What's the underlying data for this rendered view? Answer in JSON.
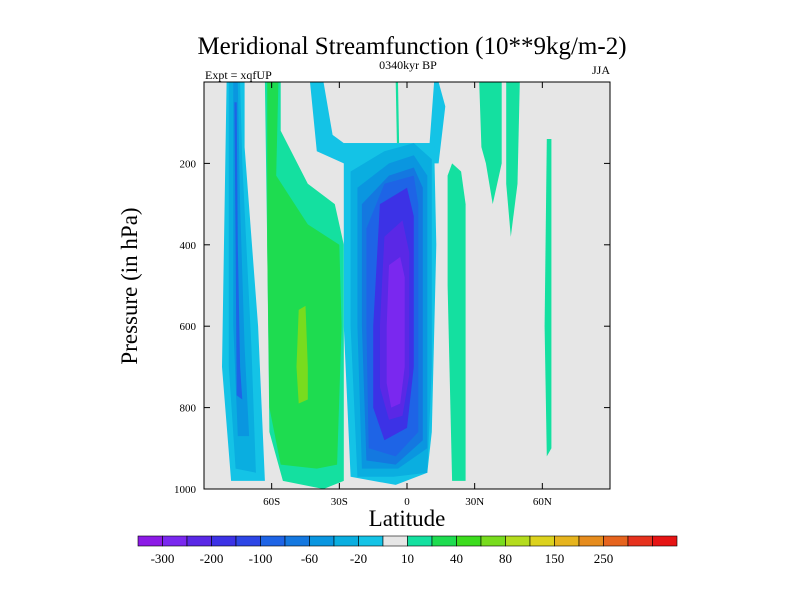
{
  "chart_data": {
    "type": "heatmap",
    "title": "Meridional Streamfunction (10**9kg/m-2)",
    "subtitle_left": "Expt = xqfUP",
    "subtitle_center": "0340kyr BP",
    "subtitle_right": "JJA",
    "xlabel": "Latitude",
    "ylabel": "Pressure (in hPa)",
    "xlim": [
      -90,
      90
    ],
    "ylim": [
      1000,
      0
    ],
    "x_ticks": [
      {
        "value": -60,
        "label": "60S"
      },
      {
        "value": -30,
        "label": "30S"
      },
      {
        "value": 0,
        "label": "0"
      },
      {
        "value": 30,
        "label": "30N"
      },
      {
        "value": 60,
        "label": "60N"
      }
    ],
    "y_ticks": [
      {
        "value": 200,
        "label": "200"
      },
      {
        "value": 400,
        "label": "400"
      },
      {
        "value": 600,
        "label": "600"
      },
      {
        "value": 800,
        "label": "800"
      },
      {
        "value": 1000,
        "label": "1000"
      }
    ],
    "background_color": "#e6e6e6",
    "levels": [
      -400,
      -300,
      -250,
      -200,
      -150,
      -100,
      -80,
      -60,
      -40,
      -20,
      -10,
      10,
      20,
      40,
      60,
      80,
      100,
      150,
      200,
      250,
      300
    ],
    "colorbar_colors": [
      "#8c1ae6",
      "#7a28ef",
      "#5a28e6",
      "#3c32e6",
      "#2d46e6",
      "#1e64e6",
      "#1478e0",
      "#0a96e0",
      "#0aaee0",
      "#14c3e6",
      "#e6e6e6",
      "#14e0a0",
      "#1edc50",
      "#3cdc1e",
      "#78dc1e",
      "#b4dc1e",
      "#dcd21e",
      "#e6b41e",
      "#e68c1e",
      "#e6641e",
      "#e6321e",
      "#e61414"
    ],
    "colorbar_labels": [
      {
        "after_box": 1,
        "label": "-300"
      },
      {
        "after_box": 3,
        "label": "-200"
      },
      {
        "after_box": 5,
        "label": "-100"
      },
      {
        "after_box": 7,
        "label": "-60"
      },
      {
        "after_box": 9,
        "label": "-20"
      },
      {
        "after_box": 11,
        "label": "10"
      },
      {
        "after_box": 13,
        "label": "40"
      },
      {
        "after_box": 15,
        "label": "80"
      },
      {
        "after_box": 17,
        "label": "150"
      },
      {
        "after_box": 19,
        "label": "250"
      }
    ],
    "regions": [
      {
        "name": "sh-polar-cell-outer",
        "value": -20,
        "color": "#14c3e6",
        "lat": [
          [
            -80,
            0
          ],
          [
            -72,
            0
          ],
          [
            -72,
            160
          ],
          [
            -66,
            600
          ],
          [
            -63,
            980
          ],
          [
            -78,
            980
          ],
          [
            -82,
            700
          ]
        ]
      },
      {
        "name": "sh-polar-cell-mid",
        "value": -40,
        "color": "#0aaee0",
        "lat": [
          [
            -79,
            0
          ],
          [
            -74,
            0
          ],
          [
            -73,
            200
          ],
          [
            -69,
            650
          ],
          [
            -67,
            960
          ],
          [
            -76,
            950
          ],
          [
            -79,
            700
          ]
        ]
      },
      {
        "name": "sh-polar-cell-core",
        "value": -60,
        "color": "#0a96e0",
        "lat": [
          [
            -77,
            0
          ],
          [
            -75,
            0
          ],
          [
            -74,
            300
          ],
          [
            -72,
            650
          ],
          [
            -70,
            870
          ],
          [
            -75,
            870
          ],
          [
            -77,
            600
          ]
        ]
      },
      {
        "name": "sh-polar-cell-inner",
        "value": -80,
        "color": "#1e64e6",
        "lat": [
          [
            -76.5,
            50
          ],
          [
            -75.5,
            50
          ],
          [
            -75,
            400
          ],
          [
            -74,
            700
          ],
          [
            -73,
            780
          ],
          [
            -75.5,
            770
          ],
          [
            -76,
            400
          ]
        ]
      },
      {
        "name": "sh-ferrel-cell-outer",
        "value": 20,
        "color": "#14e0a0",
        "lat": [
          [
            -63,
            0
          ],
          [
            -56,
            0
          ],
          [
            -56,
            120
          ],
          [
            -44,
            250
          ],
          [
            -32,
            300
          ],
          [
            -28,
            400
          ],
          [
            -28,
            980
          ],
          [
            -37,
            1000
          ],
          [
            -55,
            980
          ],
          [
            -61,
            860
          ],
          [
            -62,
            400
          ]
        ]
      },
      {
        "name": "sh-ferrel-cell-core",
        "value": 40,
        "color": "#1edc50",
        "lat": [
          [
            -62,
            0
          ],
          [
            -57,
            0
          ],
          [
            -58,
            230
          ],
          [
            -44,
            350
          ],
          [
            -30,
            400
          ],
          [
            -29,
            600
          ],
          [
            -31,
            940
          ],
          [
            -40,
            950
          ],
          [
            -56,
            940
          ],
          [
            -61,
            800
          ],
          [
            -62,
            400
          ]
        ]
      },
      {
        "name": "sh-ferrel-cell-peak",
        "value": 60,
        "color": "#78dc1e",
        "lat": [
          [
            -48,
            560
          ],
          [
            -45,
            550
          ],
          [
            -44,
            700
          ],
          [
            -44,
            780
          ],
          [
            -48,
            790
          ],
          [
            -49,
            700
          ]
        ]
      },
      {
        "name": "hadley-top-lobe",
        "value": -20,
        "color": "#14c3e6",
        "lat": [
          [
            -43,
            0
          ],
          [
            -37,
            0
          ],
          [
            -33,
            130
          ],
          [
            -28,
            150
          ],
          [
            10,
            150
          ],
          [
            12,
            0
          ],
          [
            14,
            0
          ],
          [
            17,
            60
          ],
          [
            14,
            200
          ],
          [
            -28,
            200
          ],
          [
            -40,
            170
          ]
        ]
      },
      {
        "name": "hadley-cell-outer",
        "value": -20,
        "color": "#14c3e6",
        "lat": [
          [
            -28,
            150
          ],
          [
            12,
            150
          ],
          [
            13,
            400
          ],
          [
            11,
            860
          ],
          [
            9,
            960
          ],
          [
            -5,
            990
          ],
          [
            -25,
            970
          ],
          [
            -28,
            600
          ]
        ]
      },
      {
        "name": "hadley-cell-m40",
        "value": -40,
        "color": "#0aaee0",
        "lat": [
          [
            -25,
            220
          ],
          [
            -10,
            170
          ],
          [
            3,
            150
          ],
          [
            11,
            190
          ],
          [
            11,
            700
          ],
          [
            9,
            960
          ],
          [
            -6,
            970
          ],
          [
            -22,
            970
          ],
          [
            -25,
            600
          ]
        ]
      },
      {
        "name": "hadley-cell-m60",
        "value": -60,
        "color": "#0a96e0",
        "lat": [
          [
            -22,
            260
          ],
          [
            -8,
            200
          ],
          [
            3,
            180
          ],
          [
            9,
            230
          ],
          [
            9,
            900
          ],
          [
            -4,
            950
          ],
          [
            -20,
            950
          ],
          [
            -22,
            600
          ]
        ]
      },
      {
        "name": "hadley-cell-m80",
        "value": -80,
        "color": "#1478e0",
        "lat": [
          [
            -20,
            300
          ],
          [
            -8,
            230
          ],
          [
            3,
            210
          ],
          [
            7,
            260
          ],
          [
            7,
            880
          ],
          [
            -5,
            940
          ],
          [
            -18,
            930
          ],
          [
            -20,
            600
          ]
        ]
      },
      {
        "name": "hadley-cell-m100",
        "value": -100,
        "color": "#1e64e6",
        "lat": [
          [
            -18,
            360
          ],
          [
            -10,
            250
          ],
          [
            3,
            230
          ],
          [
            5,
            300
          ],
          [
            5,
            860
          ],
          [
            -5,
            920
          ],
          [
            -17,
            900
          ],
          [
            -18,
            600
          ]
        ]
      },
      {
        "name": "hadley-cell-m150",
        "value": -150,
        "color": "#3c32e6",
        "lat": [
          [
            -15,
            600
          ],
          [
            -12,
            300
          ],
          [
            0,
            260
          ],
          [
            3,
            330
          ],
          [
            3,
            700
          ],
          [
            0,
            850
          ],
          [
            -10,
            880
          ],
          [
            -15,
            800
          ]
        ]
      },
      {
        "name": "hadley-cell-m200",
        "value": -200,
        "color": "#5a28e6",
        "lat": [
          [
            -12,
            600
          ],
          [
            -10,
            380
          ],
          [
            -2,
            340
          ],
          [
            1,
            420
          ],
          [
            1,
            720
          ],
          [
            -2,
            820
          ],
          [
            -8,
            830
          ],
          [
            -12,
            750
          ]
        ]
      },
      {
        "name": "hadley-cell-core",
        "value": -250,
        "color": "#7a28ef",
        "lat": [
          [
            -9,
            600
          ],
          [
            -8,
            450
          ],
          [
            -3,
            430
          ],
          [
            -1,
            480
          ],
          [
            -1,
            700
          ],
          [
            -3,
            790
          ],
          [
            -7,
            800
          ],
          [
            -9,
            740
          ]
        ]
      },
      {
        "name": "equatorial-jet-sliver",
        "value": 10,
        "color": "#14e0a0",
        "lat": [
          [
            -5,
            0
          ],
          [
            -4,
            0
          ],
          [
            -3.5,
            150
          ],
          [
            -4.5,
            150
          ]
        ]
      },
      {
        "name": "nh-band-20n",
        "value": 20,
        "color": "#14e0a0",
        "lat": [
          [
            18,
            230
          ],
          [
            20,
            200
          ],
          [
            24,
            220
          ],
          [
            26,
            300
          ],
          [
            26,
            980
          ],
          [
            20,
            980
          ],
          [
            18,
            500
          ]
        ]
      },
      {
        "name": "nh-upper-band",
        "value": 20,
        "color": "#14e0a0",
        "lat": [
          [
            32,
            0
          ],
          [
            42,
            0
          ],
          [
            42,
            200
          ],
          [
            38,
            300
          ],
          [
            35,
            200
          ],
          [
            33,
            160
          ]
        ]
      },
      {
        "name": "nh-upper-band-right",
        "value": 20,
        "color": "#14e0a0",
        "lat": [
          [
            44,
            0
          ],
          [
            50,
            0
          ],
          [
            49,
            250
          ],
          [
            46,
            380
          ],
          [
            44,
            250
          ]
        ]
      },
      {
        "name": "nh-midlat-sliver",
        "value": 20,
        "color": "#14e0a0",
        "lat": [
          [
            62,
            140
          ],
          [
            64,
            140
          ],
          [
            64,
            900
          ],
          [
            62,
            920
          ],
          [
            61,
            600
          ]
        ]
      }
    ]
  }
}
